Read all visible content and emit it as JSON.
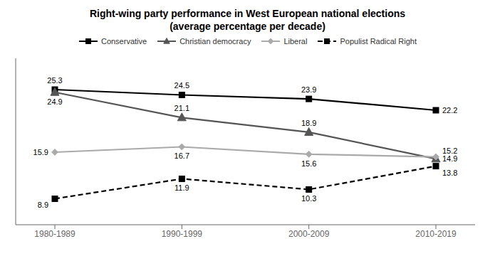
{
  "chart_data": {
    "type": "line",
    "title": "Right-wing party performance in West European national elections",
    "subtitle": "(average percentage per decade)",
    "categories": [
      "1980-1989",
      "1990-1999",
      "2000-2009",
      "2010-2019"
    ],
    "series": [
      {
        "name": "Conservative",
        "color": "#000000",
        "marker": "square",
        "line_style": "solid",
        "values": [
          25.3,
          24.5,
          23.9,
          22.2
        ]
      },
      {
        "name": "Christian democracy",
        "color": "#555555",
        "marker": "triangle",
        "line_style": "solid",
        "values": [
          24.9,
          21.1,
          18.9,
          14.9
        ]
      },
      {
        "name": "Liberal",
        "color": "#aaaaaa",
        "marker": "diamond",
        "line_style": "solid",
        "values": [
          15.9,
          16.7,
          15.6,
          15.2
        ]
      },
      {
        "name": "Populist Radical Right",
        "color": "#000000",
        "marker": "square",
        "line_style": "dashed",
        "values": [
          8.9,
          11.9,
          10.3,
          13.8
        ]
      }
    ],
    "ylim": [
      5,
      30
    ],
    "grid": false,
    "legend": "top",
    "data_labels": true,
    "tick_labels": "x"
  }
}
